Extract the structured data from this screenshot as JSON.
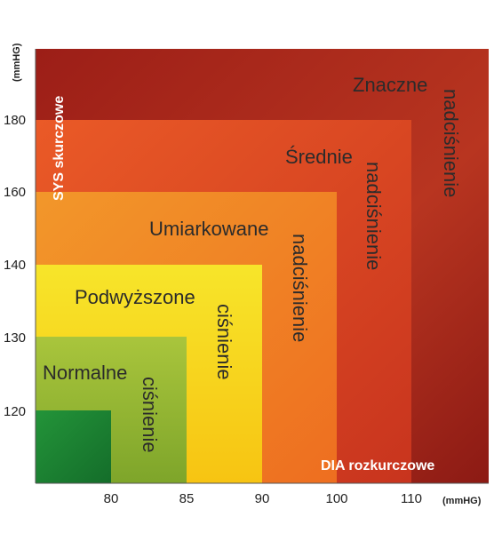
{
  "chart_data": {
    "type": "area",
    "title": "",
    "xlabel": "DIA rozkurczowe",
    "ylabel": "SYS skurczowe",
    "x_unit": "(mmHG)",
    "y_unit": "(mmHG)",
    "x_ticks": [
      "80",
      "85",
      "90",
      "100",
      "110"
    ],
    "y_ticks": [
      "120",
      "130",
      "140",
      "160",
      "180"
    ],
    "zones": [
      {
        "name": "Znaczne nadciśnienie",
        "label_line1": "Znaczne",
        "label_line2": "nadciśnienie",
        "dia_max": "above 110",
        "sys_max": "above 180",
        "color": "#a8261d"
      },
      {
        "name": "Średnie nadciśnienie",
        "label_line1": "Średnie",
        "label_line2": "nadciśnienie",
        "dia_max": 110,
        "sys_max": 180,
        "color": "#e4512a"
      },
      {
        "name": "Umiarkowane nadciśnienie",
        "label_line1": "Umiarkowane",
        "label_line2": "nadciśnienie",
        "dia_max": 100,
        "sys_max": 160,
        "color": "#ef8a22"
      },
      {
        "name": "Podwyższone ciśnienie",
        "label_line1": "Podwyższone",
        "label_line2": "ciśnienie",
        "dia_max": 90,
        "sys_max": 140,
        "color": "#f6d21b"
      },
      {
        "name": "Normalne ciśnienie",
        "label_line1": "Normalne",
        "label_line2": "ciśnienie",
        "dia_max": 85,
        "sys_max": 130,
        "color": "#9fbf36"
      },
      {
        "name": "",
        "label_line1": "",
        "label_line2": "",
        "dia_max": 80,
        "sys_max": 120,
        "color": "#1f8a35"
      }
    ]
  }
}
